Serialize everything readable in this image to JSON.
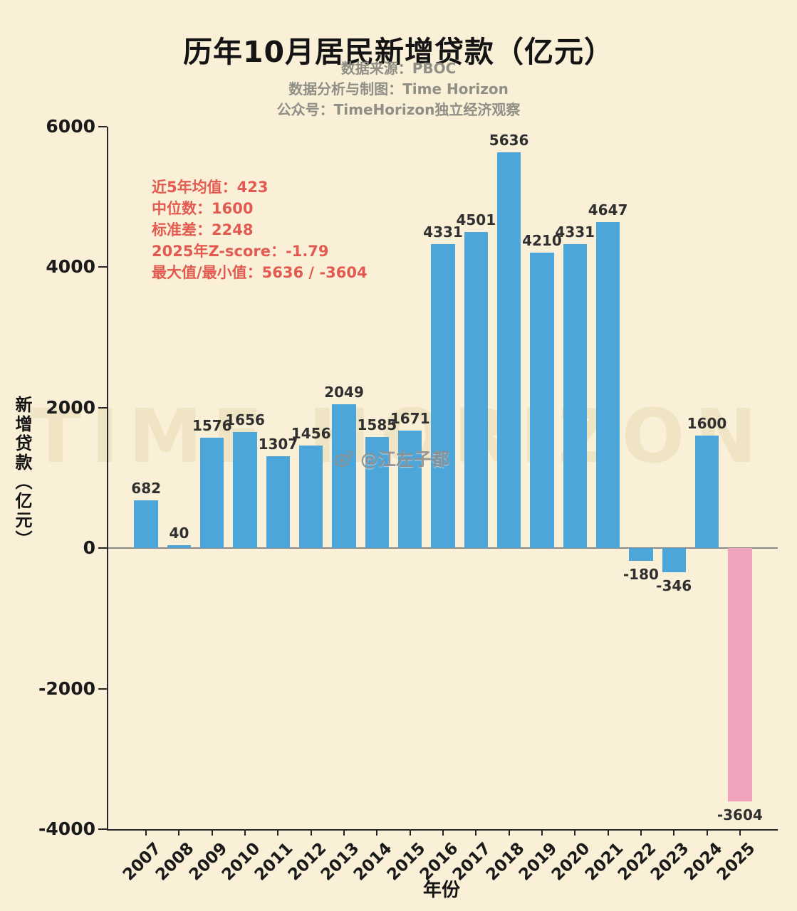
{
  "title": "历年10月居民新增贷款（亿元）",
  "subtitle_lines": [
    "数据来源：PBOC",
    "数据分析与制图：Time Horizon",
    "公众号：TimeHorizon独立经济观察"
  ],
  "stats_lines": [
    "近5年均值：423",
    "中位数：1600",
    "标准差：2248",
    "2025年Z-score：-1.79",
    "最大值/最小值：5636 / -3604"
  ],
  "watermark_text": "TIME HORIZON",
  "weibo_watermark": "@江左子都",
  "chart_data": {
    "type": "bar",
    "title": "历年10月居民新增贷款（亿元）",
    "xlabel": "年份",
    "ylabel": "新增贷款（亿元）",
    "categories": [
      "2007",
      "2008",
      "2009",
      "2010",
      "2011",
      "2012",
      "2013",
      "2014",
      "2015",
      "2016",
      "2017",
      "2018",
      "2019",
      "2020",
      "2021",
      "2022",
      "2023",
      "2024",
      "2025"
    ],
    "values": [
      682,
      40,
      1576,
      1656,
      1307,
      1456,
      2049,
      1585,
      1671,
      4331,
      4501,
      5636,
      4210,
      4331,
      4647,
      -180,
      -346,
      1600,
      -3604
    ],
    "ylim": [
      -4000,
      6000
    ],
    "yticks": [
      6000,
      4000,
      2000,
      0,
      -2000,
      -4000
    ],
    "grid": false,
    "legend": null,
    "bar_color": "#4da6d9",
    "highlight": {
      "category": "2025",
      "color": "#f0a3ba"
    },
    "value_label_color": "#2f2f2f",
    "zero_line_color": "#8a8a8a",
    "background_color": "#faf0d8",
    "stats_color": "#e25a50"
  }
}
